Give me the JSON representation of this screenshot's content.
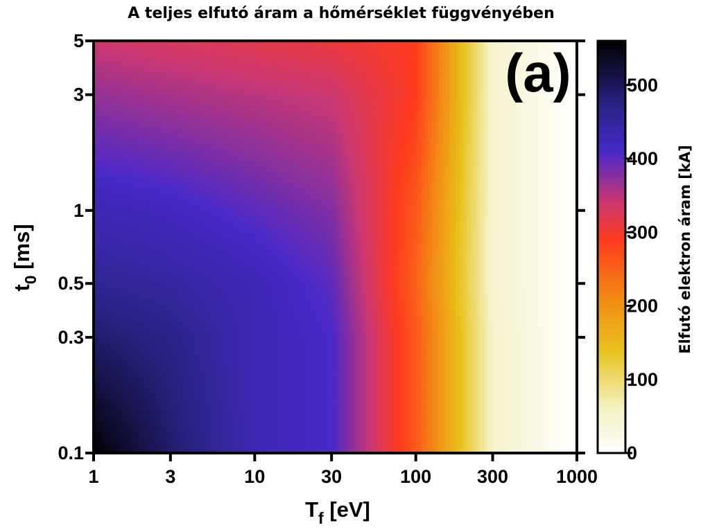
{
  "chart_data": {
    "type": "heatmap",
    "title": "A teljes elfutó áram a hőmérséklet függvényében",
    "panel_label": "(a)",
    "x_axis": {
      "label_main": "T",
      "label_sub": "f",
      "label_unit": " [eV]",
      "scale": "log",
      "range": [
        1,
        1000
      ],
      "ticks": [
        {
          "value": 1,
          "label": "1"
        },
        {
          "value": 3,
          "label": "3"
        },
        {
          "value": 10,
          "label": "10"
        },
        {
          "value": 30,
          "label": "30"
        },
        {
          "value": 100,
          "label": "100"
        },
        {
          "value": 300,
          "label": "300"
        },
        {
          "value": 1000,
          "label": "1000"
        }
      ]
    },
    "y_axis": {
      "label_main": "t",
      "label_sub": "0",
      "label_unit": " [ms]",
      "scale": "log",
      "range": [
        0.1,
        5
      ],
      "ticks": [
        {
          "value": 0.1,
          "label": "0.1"
        },
        {
          "value": 0.3,
          "label": "0.3"
        },
        {
          "value": 0.5,
          "label": "0.5"
        },
        {
          "value": 1,
          "label": "1"
        },
        {
          "value": 3,
          "label": "3"
        },
        {
          "value": 5,
          "label": "5"
        }
      ]
    },
    "colorbar": {
      "label": "Elfutó elektron áram [kA]",
      "range": [
        0,
        560
      ],
      "ticks": [
        {
          "value": 0,
          "label": "0"
        },
        {
          "value": 100,
          "label": "100"
        },
        {
          "value": 200,
          "label": "200"
        },
        {
          "value": 300,
          "label": "300"
        },
        {
          "value": 400,
          "label": "400"
        },
        {
          "value": 500,
          "label": "500"
        }
      ],
      "colormap": [
        {
          "v": 0,
          "color": "#ffffff"
        },
        {
          "v": 60,
          "color": "#f4f2c6"
        },
        {
          "v": 140,
          "color": "#e8c21c"
        },
        {
          "v": 210,
          "color": "#f28a14"
        },
        {
          "v": 290,
          "color": "#ff3a1e"
        },
        {
          "v": 340,
          "color": "#cc3870"
        },
        {
          "v": 410,
          "color": "#4828c8"
        },
        {
          "v": 470,
          "color": "#2a2488"
        },
        {
          "v": 560,
          "color": "#000000"
        }
      ]
    },
    "x_values": [
      1,
      3,
      10,
      30,
      100,
      300,
      1000
    ],
    "y_values": [
      0.1,
      0.3,
      0.5,
      1,
      3,
      5
    ],
    "z_values": [
      [
        560,
        490,
        430,
        410,
        260,
        55,
        0
      ],
      [
        490,
        470,
        430,
        410,
        260,
        55,
        0
      ],
      [
        460,
        450,
        430,
        400,
        250,
        50,
        0
      ],
      [
        430,
        420,
        400,
        380,
        260,
        50,
        0
      ],
      [
        370,
        360,
        350,
        340,
        290,
        50,
        0
      ],
      [
        340,
        330,
        320,
        310,
        290,
        50,
        0
      ]
    ]
  }
}
